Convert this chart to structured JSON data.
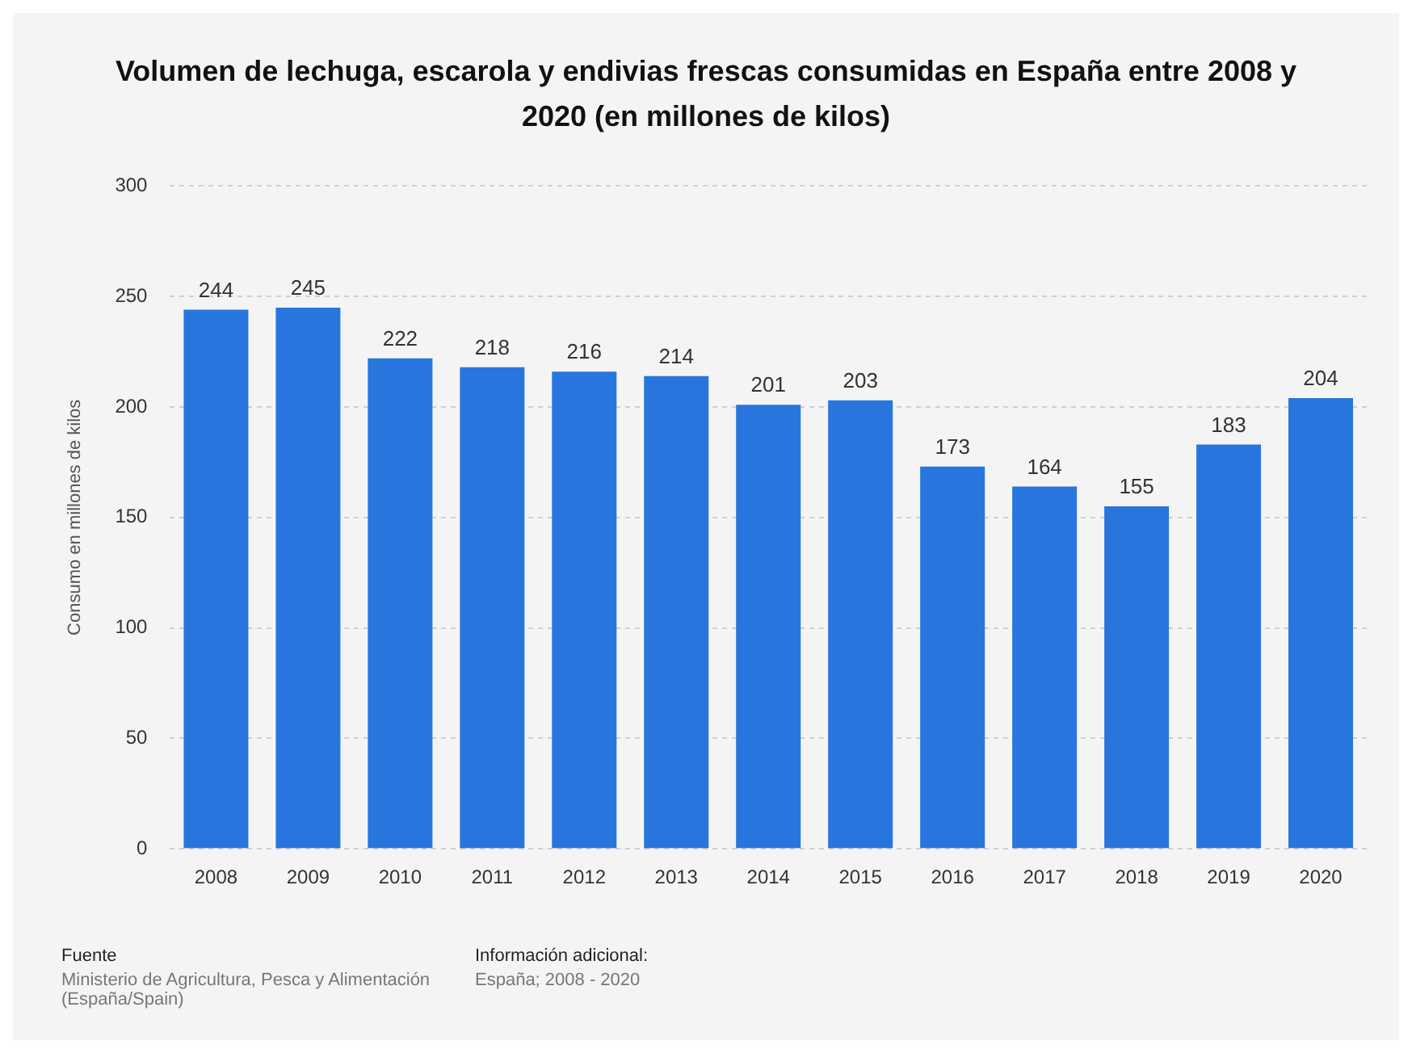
{
  "chart_data": {
    "type": "bar",
    "title": "Volumen de lechuga, escarola y endivias frescas consumidas en España entre 2008 y 2020 (en millones de kilos)",
    "ylabel": "Consumo en millones de kilos",
    "categories": [
      "2008",
      "2009",
      "2010",
      "2011",
      "2012",
      "2013",
      "2014",
      "2015",
      "2016",
      "2017",
      "2018",
      "2019",
      "2020"
    ],
    "values": [
      244,
      245,
      222,
      218,
      216,
      214,
      201,
      203,
      173,
      164,
      155,
      183,
      204
    ],
    "color": "#2876dd",
    "ylim": [
      0,
      300
    ],
    "yticks": [
      0,
      50,
      100,
      150,
      200,
      250,
      300
    ],
    "grid": "y",
    "data_labels": true,
    "line_style": "dashed",
    "annotations": [
      "Fuente",
      "Ministerio de Agricultura, Pesca y Alimentación (España/Spain)",
      "Información adicional:",
      "España; 2008 - 2020"
    ]
  }
}
